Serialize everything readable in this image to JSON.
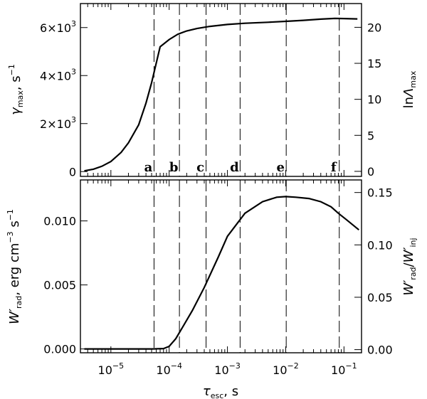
{
  "chart_data": [
    {
      "type": "line",
      "panel": "top",
      "xscale": "log",
      "xlim": [
        3e-06,
        0.2
      ],
      "ylim": [
        -200,
        7000
      ],
      "y_right_lim": [
        -0.7,
        23.3
      ],
      "ylabel": {
        "main": "γ",
        "sub": "max",
        "unit": ", s",
        "sup": "−1"
      },
      "ylabel_right": {
        "pre": "ln",
        "main": "Λ",
        "sub": "max"
      },
      "yticks": [
        {
          "value": 0,
          "base": "0",
          "exp": ""
        },
        {
          "value": 2000,
          "base": "2×10",
          "exp": "3"
        },
        {
          "value": 4000,
          "base": "4×10",
          "exp": "3"
        },
        {
          "value": 6000,
          "base": "6×10",
          "exp": "3"
        }
      ],
      "yticks_right": [
        "0",
        "5",
        "10",
        "15",
        "20"
      ],
      "yticks_right_values": [
        0,
        5,
        10,
        15,
        20
      ],
      "x": [
        3.5e-06,
        5e-06,
        7e-06,
        1e-05,
        1.5e-05,
        2e-05,
        3e-05,
        4e-05,
        5e-05,
        7e-05,
        0.0001,
        0.00014,
        0.0002,
        0.0003,
        0.0005,
        0.001,
        0.002,
        0.005,
        0.01,
        0.02,
        0.04,
        0.07,
        0.1,
        0.17
      ],
      "y": [
        30,
        100,
        220,
        420,
        800,
        1200,
        1950,
        2850,
        3700,
        5200,
        5500,
        5720,
        5860,
        5960,
        6050,
        6130,
        6180,
        6220,
        6260,
        6300,
        6350,
        6380,
        6375,
        6360
      ]
    },
    {
      "type": "line",
      "panel": "bottom",
      "xscale": "log",
      "xlim": [
        3e-06,
        0.2
      ],
      "ylim": [
        -0.0003,
        0.0132
      ],
      "y_right_lim": [
        -0.003,
        0.162
      ],
      "ylabel": {
        "main": "W′",
        "sub": "rad",
        "unit": ", erg cm",
        "sup1": "−3",
        "unit2": " s",
        "sup2": "−1"
      },
      "ylabel_right": {
        "main1": "W′",
        "sub1": "rad",
        "slash": "/",
        "main2": "W′",
        "sub2": "inj"
      },
      "yticks": [
        "0.000",
        "0.005",
        "0.010"
      ],
      "yticks_values": [
        0,
        0.005,
        0.01
      ],
      "yticks_right": [
        "0.00",
        "0.05",
        "0.10",
        "0.15"
      ],
      "yticks_right_values": [
        0,
        0.05,
        0.1,
        0.15
      ],
      "xlabel": {
        "main": "τ",
        "sub": "esc",
        "unit": ", s"
      },
      "xticks": [
        {
          "value": 1e-05,
          "base": "10",
          "exp": "−5"
        },
        {
          "value": 0.0001,
          "base": "10",
          "exp": "−4"
        },
        {
          "value": 0.001,
          "base": "10",
          "exp": "−3"
        },
        {
          "value": 0.01,
          "base": "10",
          "exp": "−2"
        },
        {
          "value": 0.1,
          "base": "10",
          "exp": "−1"
        }
      ],
      "x": [
        3.5e-06,
        1e-05,
        5e-05,
        8e-05,
        0.0001,
        0.00013,
        0.00017,
        0.00025,
        0.0004,
        0.0007,
        0.001,
        0.002,
        0.004,
        0.007,
        0.01,
        0.015,
        0.025,
        0.04,
        0.06,
        0.08,
        0.11,
        0.18
      ],
      "y": [
        0,
        0,
        0,
        3e-05,
        0.0002,
        0.0008,
        0.0017,
        0.003,
        0.0048,
        0.0072,
        0.0088,
        0.0106,
        0.0115,
        0.01185,
        0.0119,
        0.01185,
        0.01175,
        0.0115,
        0.0111,
        0.0106,
        0.0101,
        0.0093
      ]
    }
  ],
  "markers": [
    {
      "label": "a",
      "x": 5.5e-05
    },
    {
      "label": "b",
      "x": 0.00015
    },
    {
      "label": "c",
      "x": 0.00043
    },
    {
      "label": "d",
      "x": 0.00165
    },
    {
      "label": "e",
      "x": 0.0102
    },
    {
      "label": "f",
      "x": 0.083
    }
  ]
}
